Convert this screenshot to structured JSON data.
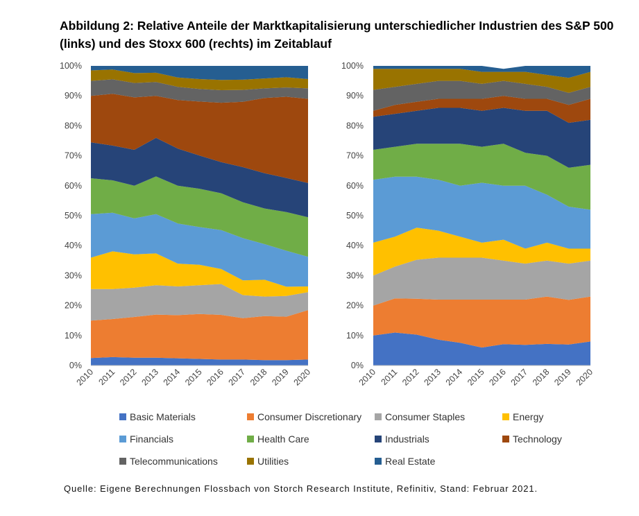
{
  "title": "Abbildung 2: Relative Anteile der Marktkapitalisierung unterschiedlicher Industrien des S&P 500 (links) und des Stoxx 600 (rechts) im Zeitablauf",
  "source": "Quelle: Eigene Berechnungen Flossbach von Storch Research Institute, Refinitiv, Stand: Februar 2021.",
  "chart_data": [
    {
      "type": "area",
      "stacked": true,
      "percent": true,
      "name": "S&P 500",
      "x": [
        2010,
        2011,
        2012,
        2013,
        2014,
        2015,
        2016,
        2017,
        2018,
        2019,
        2020
      ],
      "y_ticks": [
        "0%",
        "10%",
        "20%",
        "30%",
        "40%",
        "50%",
        "60%",
        "70%",
        "80%",
        "90%",
        "100%"
      ],
      "x_labels": [
        "2010",
        "2011",
        "2012",
        "2013",
        "2014",
        "2015",
        "2016",
        "2017",
        "2018",
        "2019",
        "2020"
      ],
      "ylim": [
        0,
        100
      ],
      "series": [
        {
          "name": "Basic Materials",
          "values": [
            2.5,
            2.8,
            2.6,
            2.6,
            2.4,
            2.2,
            2.0,
            2.0,
            1.8,
            1.8,
            2.0
          ]
        },
        {
          "name": "Consumer Discretionary",
          "values": [
            12.5,
            12.7,
            13.6,
            14.4,
            14.4,
            15.0,
            14.9,
            13.8,
            14.7,
            14.5,
            16.5
          ]
        },
        {
          "name": "Consumer Staples",
          "values": [
            10.5,
            10.0,
            9.8,
            9.8,
            9.6,
            9.6,
            10.3,
            7.7,
            6.5,
            6.9,
            6.0
          ]
        },
        {
          "name": "Energy",
          "values": [
            10.5,
            12.6,
            11.1,
            10.6,
            7.6,
            6.8,
            5.0,
            4.9,
            5.6,
            3.1,
            1.9
          ]
        },
        {
          "name": "Financials",
          "values": [
            14.5,
            12.9,
            12.0,
            13.1,
            13.4,
            12.6,
            13.0,
            14.1,
            11.9,
            12.0,
            9.9
          ]
        },
        {
          "name": "Health Care",
          "values": [
            12.0,
            10.8,
            10.9,
            12.6,
            12.6,
            12.8,
            12.3,
            12.0,
            11.9,
            12.9,
            13.2
          ]
        },
        {
          "name": "Industrials",
          "values": [
            12.0,
            11.6,
            12.0,
            12.9,
            12.4,
            11.1,
            10.4,
            11.7,
            11.8,
            11.4,
            11.4
          ]
        },
        {
          "name": "Technology",
          "values": [
            15.5,
            17.3,
            17.5,
            14.0,
            16.2,
            18.0,
            19.8,
            21.8,
            25.1,
            27.1,
            28.1
          ]
        },
        {
          "name": "Telecommunications",
          "values": [
            5.0,
            4.8,
            4.8,
            4.6,
            4.4,
            4.2,
            4.2,
            4.0,
            3.2,
            3.1,
            3.5
          ]
        },
        {
          "name": "Utilities",
          "values": [
            3.5,
            3.3,
            3.3,
            3.1,
            3.1,
            3.3,
            3.4,
            3.4,
            3.3,
            3.4,
            3.1
          ]
        },
        {
          "name": "Real Estate",
          "values": [
            1.5,
            1.2,
            2.4,
            2.3,
            3.9,
            4.4,
            4.7,
            4.6,
            4.2,
            3.8,
            4.4
          ]
        }
      ]
    },
    {
      "type": "area",
      "stacked": true,
      "percent": true,
      "name": "Stoxx 600",
      "x": [
        2010,
        2011,
        2012,
        2013,
        2014,
        2015,
        2016,
        2017,
        2018,
        2019,
        2020
      ],
      "y_ticks": [
        "0%",
        "10%",
        "20%",
        "30%",
        "40%",
        "50%",
        "60%",
        "70%",
        "80%",
        "90%",
        "100%"
      ],
      "x_labels": [
        "2010",
        "2011",
        "2012",
        "2013",
        "2014",
        "2015",
        "2016",
        "2017",
        "2018",
        "2019",
        "2020"
      ],
      "ylim": [
        0,
        100
      ],
      "series": [
        {
          "name": "Basic Materials",
          "values": [
            10.0,
            11.0,
            10.3,
            8.6,
            7.6,
            6.0,
            7.1,
            6.9,
            7.2,
            7.0,
            8.0
          ]
        },
        {
          "name": "Consumer Discretionary",
          "values": [
            10.0,
            11.4,
            12.0,
            13.4,
            14.4,
            16.0,
            14.9,
            15.1,
            15.8,
            14.9,
            15.0
          ]
        },
        {
          "name": "Consumer Staples",
          "values": [
            10.0,
            10.6,
            13.0,
            14.0,
            14.0,
            14.0,
            13.0,
            12.0,
            12.0,
            12.1,
            12.0
          ]
        },
        {
          "name": "Energy",
          "values": [
            11.0,
            10.0,
            10.7,
            9.0,
            7.0,
            5.0,
            7.0,
            5.0,
            6.0,
            5.0,
            4.0
          ]
        },
        {
          "name": "Financials",
          "values": [
            21.0,
            20.0,
            17.0,
            17.0,
            17.0,
            20.0,
            18.0,
            21.0,
            16.0,
            14.0,
            13.0
          ]
        },
        {
          "name": "Health Care",
          "values": [
            10.0,
            10.0,
            11.0,
            12.0,
            14.0,
            12.0,
            14.0,
            11.0,
            13.0,
            13.0,
            15.0
          ]
        },
        {
          "name": "Industrials",
          "values": [
            11.0,
            11.0,
            11.0,
            12.0,
            12.0,
            12.0,
            12.0,
            14.0,
            15.0,
            15.0,
            15.0
          ]
        },
        {
          "name": "Technology",
          "values": [
            2.0,
            3.0,
            3.0,
            3.0,
            3.0,
            4.0,
            4.0,
            4.0,
            4.0,
            6.0,
            7.0
          ]
        },
        {
          "name": "Telecommunications",
          "values": [
            7.0,
            6.0,
            6.0,
            6.0,
            6.0,
            5.0,
            5.0,
            5.0,
            4.0,
            4.0,
            4.0
          ]
        },
        {
          "name": "Utilities",
          "values": [
            7.0,
            6.0,
            5.0,
            4.0,
            4.0,
            4.0,
            3.0,
            4.0,
            4.0,
            5.0,
            5.0
          ]
        },
        {
          "name": "Real Estate",
          "values": [
            1.0,
            1.0,
            1.0,
            1.0,
            1.0,
            2.0,
            1.0,
            2.0,
            3.0,
            4.0,
            2.0
          ]
        }
      ]
    }
  ],
  "legend": [
    {
      "name": "Basic Materials",
      "color": "#4472c4"
    },
    {
      "name": "Consumer Discretionary",
      "color": "#ed7d31"
    },
    {
      "name": "Consumer Staples",
      "color": "#a5a5a5"
    },
    {
      "name": "Energy",
      "color": "#ffc000"
    },
    {
      "name": "Financials",
      "color": "#5b9bd5"
    },
    {
      "name": "Health Care",
      "color": "#70ad47"
    },
    {
      "name": "Industrials",
      "color": "#264478"
    },
    {
      "name": "Technology",
      "color": "#9e480e"
    },
    {
      "name": "Telecommunications",
      "color": "#636363"
    },
    {
      "name": "Utilities",
      "color": "#997300"
    },
    {
      "name": "Real Estate",
      "color": "#255e91"
    }
  ]
}
